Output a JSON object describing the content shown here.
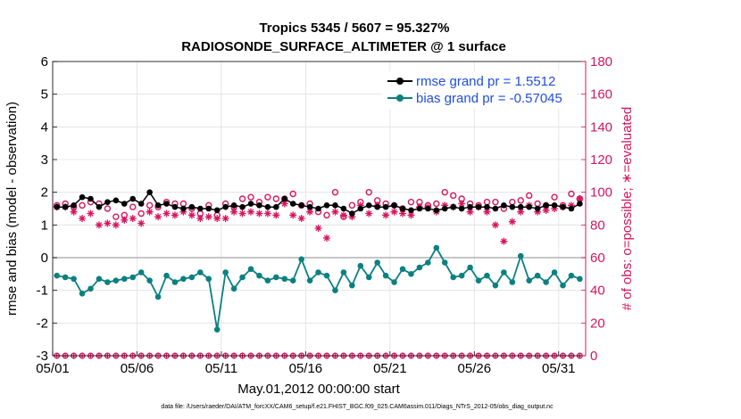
{
  "chart_data": {
    "type": "line",
    "title": "Tropics 5345 / 5607 = 95.327%",
    "subtitle": "RADIOSONDE_SURFACE_ALTIMETER @ 1 surface",
    "xlabel": "May.01,2012 00:00:00 start",
    "ylabel": "rmse and bias (model - observation)",
    "y2label": "# of obs: o=possible; ∗=evaluated",
    "footer": "data file: /Users/raeder/DAI/ATM_forcXX/CAM6_setup/f.e21.FHIST_BGC.f09_025.CAM6assim.011/Diags_NTrS_2012-05/obs_diag_output.nc",
    "xlim": [
      1,
      32.6
    ],
    "ylim": [
      -3,
      6
    ],
    "y2lim": [
      0,
      180
    ],
    "x_ticks": [
      1,
      6,
      11,
      16,
      21,
      26,
      31
    ],
    "x_tick_labels": [
      "05/01",
      "05/06",
      "05/11",
      "05/16",
      "05/21",
      "05/26",
      "05/31"
    ],
    "y_ticks": [
      -3,
      -2,
      -1,
      0,
      1,
      2,
      3,
      4,
      5,
      6
    ],
    "y_tick_labels": [
      "-3",
      "-2",
      "-1",
      "0",
      "1",
      "2",
      "3",
      "4",
      "5",
      "6"
    ],
    "y2_ticks": [
      0,
      20,
      40,
      60,
      80,
      100,
      120,
      140,
      160,
      180
    ],
    "y2_tick_labels": [
      "0",
      "20",
      "40",
      "60",
      "80",
      "100",
      "120",
      "140",
      "160",
      "180"
    ],
    "zero_line": 0,
    "colors": {
      "rmse": "#000000",
      "bias": "#0b8080",
      "obs": "#d6155e",
      "legend_text": "#1f4ee0",
      "zero_line": "#b3b3b3",
      "grid": "#e0e0e0"
    },
    "x": [
      1.25,
      1.75,
      2.25,
      2.75,
      3.25,
      3.75,
      4.25,
      4.75,
      5.25,
      5.75,
      6.25,
      6.75,
      7.25,
      7.75,
      8.25,
      8.75,
      9.25,
      9.75,
      10.25,
      10.75,
      11.25,
      11.75,
      12.25,
      12.75,
      13.25,
      13.75,
      14.25,
      14.75,
      15.25,
      15.75,
      16.25,
      16.75,
      17.25,
      17.75,
      18.25,
      18.75,
      19.25,
      19.75,
      20.25,
      20.75,
      21.25,
      21.75,
      22.25,
      22.75,
      23.25,
      23.75,
      24.25,
      24.75,
      25.25,
      25.75,
      26.25,
      26.75,
      27.25,
      27.75,
      28.25,
      28.75,
      29.25,
      29.75,
      30.25,
      30.75,
      31.25,
      31.75,
      32.25
    ],
    "series": [
      {
        "name": "rmse grand pr = 1.5512",
        "axis": "left",
        "marker": "filled-circle",
        "values": [
          1.55,
          1.55,
          1.6,
          1.85,
          1.8,
          1.55,
          1.7,
          1.75,
          1.65,
          1.8,
          1.65,
          2.0,
          1.6,
          1.65,
          1.55,
          1.5,
          1.55,
          1.5,
          1.5,
          1.45,
          1.55,
          1.6,
          1.55,
          1.65,
          1.6,
          1.55,
          1.55,
          1.8,
          1.65,
          1.6,
          1.55,
          1.5,
          1.6,
          1.6,
          1.5,
          1.35,
          1.5,
          1.6,
          1.55,
          1.55,
          1.6,
          1.5,
          1.45,
          1.5,
          1.5,
          1.45,
          1.5,
          1.55,
          1.5,
          1.55,
          1.55,
          1.55,
          1.5,
          1.6,
          1.55,
          1.55,
          1.55,
          1.5,
          1.6,
          1.6,
          1.55,
          1.5,
          1.65
        ]
      },
      {
        "name": "bias grand pr = -0.57045",
        "axis": "left",
        "marker": "filled-circle",
        "values": [
          -0.55,
          -0.6,
          -0.65,
          -1.1,
          -0.95,
          -0.65,
          -0.75,
          -0.7,
          -0.65,
          -0.6,
          -0.45,
          -0.7,
          -1.2,
          -0.55,
          -0.75,
          -0.65,
          -0.6,
          -0.45,
          -0.65,
          -2.2,
          -0.45,
          -0.95,
          -0.6,
          -0.35,
          -0.55,
          -0.7,
          -0.6,
          -0.65,
          -0.7,
          -0.05,
          -0.7,
          -0.45,
          -0.55,
          -1.0,
          -0.45,
          -0.85,
          -0.25,
          -0.6,
          -0.15,
          -0.55,
          -0.75,
          -0.35,
          -0.5,
          -0.3,
          -0.15,
          0.3,
          -0.15,
          -0.6,
          -0.55,
          -0.3,
          -0.7,
          -0.55,
          -0.85,
          -0.45,
          -0.75,
          0.05,
          -0.7,
          -0.55,
          -0.75,
          -0.45,
          -0.85,
          -0.55,
          -0.65
        ]
      },
      {
        "name": "possible",
        "axis": "right",
        "marker": "open-circle",
        "values": [
          92,
          93,
          91,
          92,
          94,
          93,
          90,
          85,
          86,
          91,
          87,
          92,
          91,
          94,
          93,
          93,
          90,
          87,
          92,
          86,
          93,
          91,
          96,
          97,
          94,
          97,
          96,
          96,
          99,
          92,
          93,
          88,
          86,
          100,
          85,
          92,
          94,
          100,
          95,
          93,
          92,
          90,
          94,
          94,
          92,
          93,
          100,
          98,
          96,
          93,
          92,
          94,
          94,
          90,
          94,
          95,
          98,
          93,
          92,
          97,
          92,
          99,
          96
        ]
      },
      {
        "name": "evaluated",
        "axis": "right",
        "marker": "asterisk",
        "values": [
          91,
          91,
          88,
          84,
          87,
          80,
          81,
          80,
          83,
          84,
          81,
          88,
          85,
          87,
          86,
          88,
          86,
          84,
          85,
          84,
          84,
          88,
          87,
          88,
          87,
          87,
          86,
          93,
          86,
          84,
          88,
          78,
          72,
          88,
          86,
          85,
          92,
          87,
          92,
          86,
          88,
          87,
          86,
          91,
          91,
          88,
          92,
          91,
          93,
          88,
          91,
          88,
          80,
          70,
          82,
          88,
          92,
          88,
          89,
          90,
          91,
          92,
          96
        ]
      }
    ]
  }
}
